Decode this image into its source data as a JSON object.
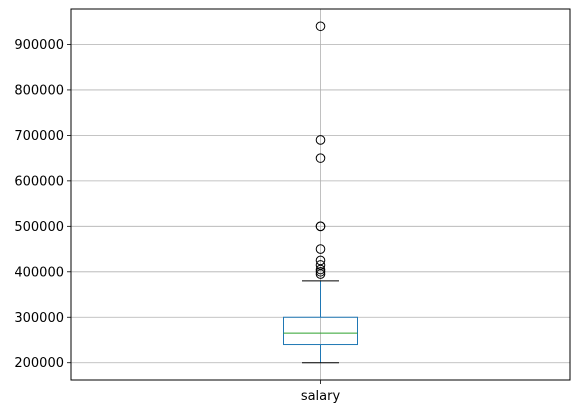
{
  "chart_data": {
    "type": "box",
    "categories": [
      "salary"
    ],
    "series": [
      {
        "name": "salary",
        "whisker_low": 200000,
        "q1": 240000,
        "median": 265000,
        "q3": 300000,
        "whisker_high": 380000,
        "outliers": [
          940000,
          690000,
          650000,
          500000,
          500000,
          450000,
          425000,
          415000,
          405000,
          400000,
          395000
        ]
      }
    ],
    "y_ticks": [
      "200000",
      "300000",
      "400000",
      "500000",
      "600000",
      "700000",
      "800000",
      "900000"
    ],
    "ylim": [
      162000,
      978000
    ],
    "grid": true,
    "colors": {
      "box": "#1f77b4",
      "median": "#2ca02c",
      "whisker": "#000000",
      "grid": "#b0b0b0"
    }
  }
}
